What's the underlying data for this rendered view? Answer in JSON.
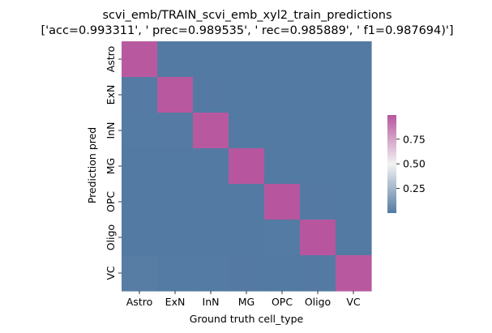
{
  "chart_data": {
    "type": "heatmap",
    "title_line1": "scvi_emb/TRAIN_scvi_emb_xyl2_train_predictions",
    "title_line2": "['acc=0.993311', ' prec=0.989535', ' rec=0.985889', ' f1=0.987694)']",
    "xlabel": "Ground truth cell_type",
    "ylabel": "Prediction pred",
    "x_categories": [
      "Astro",
      "ExN",
      "InN",
      "MG",
      "OPC",
      "Oligo",
      "VC"
    ],
    "y_categories": [
      "Astro",
      "ExN",
      "InN",
      "MG",
      "OPC",
      "Oligo",
      "VC"
    ],
    "matrix": [
      [
        0.985,
        0.0,
        0.0,
        0.0,
        0.0,
        0.0,
        0.0
      ],
      [
        0.005,
        0.99,
        0.002,
        0.0,
        0.0,
        0.0,
        0.0
      ],
      [
        0.004,
        0.005,
        0.985,
        0.001,
        0.0,
        0.0,
        0.0
      ],
      [
        0.001,
        0.0,
        0.001,
        0.995,
        0.001,
        0.001,
        0.0
      ],
      [
        0.001,
        0.001,
        0.0,
        0.001,
        0.995,
        0.002,
        0.0
      ],
      [
        0.001,
        0.001,
        0.001,
        0.001,
        0.003,
        0.995,
        0.001
      ],
      [
        0.012,
        0.003,
        0.003,
        0.002,
        0.001,
        0.002,
        0.985
      ]
    ],
    "colorbar": {
      "min": 0.0,
      "max": 0.995,
      "ticks": [
        0.25,
        0.5,
        0.75
      ],
      "tick_labels": [
        "0.25",
        "0.50",
        "0.75"
      ],
      "color_low": "#537aa3",
      "color_mid": "#f2f2f2",
      "color_high": "#b7569e"
    },
    "grid": false,
    "legend": "right"
  }
}
